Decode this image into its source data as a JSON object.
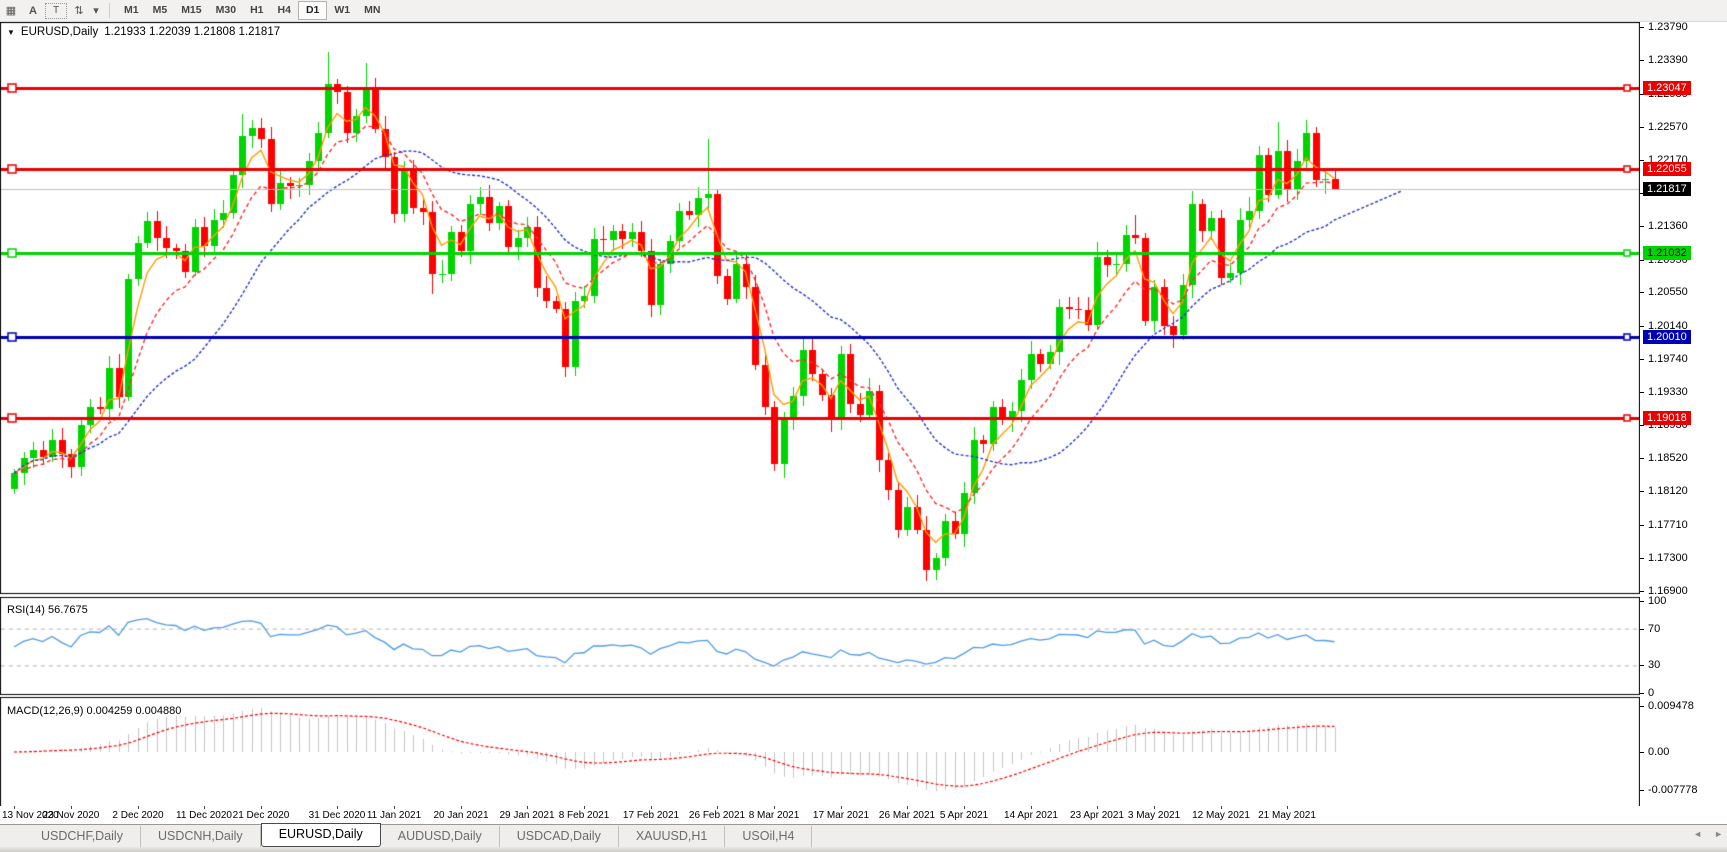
{
  "icons": {
    "dropdown": "▼",
    "tool_grid": "▦",
    "tool_text_a": "A",
    "tool_text_box": "T",
    "tool_arrows": "⇅",
    "tool_caret": "▾",
    "tab_left": "◄",
    "tab_right": "►"
  },
  "toolbar": {
    "timeframes": [
      "M1",
      "M5",
      "M15",
      "M30",
      "H1",
      "H4",
      "D1",
      "W1",
      "MN"
    ],
    "active_timeframe": "D1"
  },
  "chart_header": {
    "symbol": "EURUSD,Daily",
    "ohlc": "1.21933 1.22039 1.21808 1.21817"
  },
  "price_axis": {
    "ticks": [
      "1.23790",
      "1.23390",
      "1.22980",
      "1.22570",
      "1.22170",
      "1.21760",
      "1.21360",
      "1.20950",
      "1.20550",
      "1.20140",
      "1.19740",
      "1.19330",
      "1.18930",
      "1.18520",
      "1.18120",
      "1.17710",
      "1.17300",
      "1.16900"
    ]
  },
  "date_axis": {
    "labels": [
      "13 Nov 2020",
      "23 Nov 2020",
      "2 Dec 2020",
      "11 Dec 2020",
      "21 Dec 2020",
      "31 Dec 2020",
      "11 Jan 2021",
      "20 Jan 2021",
      "29 Jan 2021",
      "8 Feb 2021",
      "17 Feb 2021",
      "26 Feb 2021",
      "8 Mar 2021",
      "17 Mar 2021",
      "26 Mar 2021",
      "5 Apr 2021",
      "14 Apr 2021",
      "23 Apr 2021",
      "3 May 2021",
      "12 May 2021",
      "21 May 2021"
    ],
    "bar_indices": [
      0,
      6,
      13,
      20,
      26,
      34,
      40,
      47,
      54,
      60,
      67,
      74,
      80,
      87,
      94,
      100,
      107,
      114,
      120,
      127,
      134
    ]
  },
  "hlines": [
    {
      "value": "1.23047",
      "price": 1.23047,
      "color": "#ea0000",
      "text_color": "#ffffff"
    },
    {
      "value": "1.22055",
      "price": 1.22055,
      "color": "#ea0000",
      "text_color": "#ffffff"
    },
    {
      "value": "1.21032",
      "price": 1.21032,
      "color": "#00d400",
      "text_color": "#000000"
    },
    {
      "value": "1.20010",
      "price": 1.2001,
      "color": "#0000b4",
      "text_color": "#ffffff"
    },
    {
      "value": "1.19018",
      "price": 1.19018,
      "color": "#ea0000",
      "text_color": "#ffffff"
    }
  ],
  "current_price": {
    "value": "1.21817",
    "price": 1.21817,
    "line_color": "#c0c0c0",
    "tag_bg": "#000000",
    "tag_fg": "#ffffff"
  },
  "indicators": {
    "rsi": {
      "label": "RSI(14)",
      "value": "56.7675",
      "color": "#4f9be8",
      "axis": [
        {
          "text": "100",
          "v": 100
        },
        {
          "text": "70",
          "v": 70
        },
        {
          "text": "30",
          "v": 30
        },
        {
          "text": "0",
          "v": 0
        }
      ],
      "levels": [
        70,
        30
      ]
    },
    "macd": {
      "label": "MACD(12,26,9)",
      "value1": "0.004259",
      "value2": "0.004880",
      "hist_color": "#c4c4c4",
      "signal_color": "#ff0000",
      "axis": [
        {
          "text": "0.009478",
          "v": 0.009478
        },
        {
          "text": "0.00",
          "v": 0
        },
        {
          "text": "-0.007778",
          "v": -0.007778
        }
      ]
    }
  },
  "tabs": {
    "items": [
      "USDCHF,Daily",
      "USDCNH,Daily",
      "EURUSD,Daily",
      "AUDUSD,Daily",
      "USDCAD,Daily",
      "XAUUSD,H1",
      "USOil,H4"
    ],
    "active_index": 2
  },
  "chart_data": {
    "type": "candlestick",
    "symbol": "EURUSD",
    "timeframe": "Daily",
    "start_date": "13 Nov 2020",
    "end_date": "28 May 2021",
    "ylim": [
      1.16873,
      1.23855
    ],
    "up_color": "#00d400",
    "down_color": "#ff0000",
    "first_open": 1.1815,
    "closes": [
      1.1834,
      1.1852,
      1.1862,
      1.1854,
      1.1874,
      1.1857,
      1.1842,
      1.1893,
      1.1915,
      1.1913,
      1.1963,
      1.1927,
      1.2071,
      1.2115,
      1.2142,
      1.2121,
      1.2109,
      1.2106,
      1.208,
      1.2135,
      1.2112,
      1.2143,
      1.2152,
      1.2199,
      1.2246,
      1.2256,
      1.2243,
      1.2163,
      1.2189,
      1.2185,
      1.2186,
      1.2215,
      1.225,
      1.231,
      1.23,
      1.225,
      1.227,
      1.2303,
      1.2255,
      1.222,
      1.2151,
      1.2207,
      1.2158,
      1.2153,
      1.2077,
      1.2078,
      1.2129,
      1.2105,
      1.2163,
      1.2171,
      1.214,
      1.216,
      1.211,
      1.2122,
      1.2135,
      1.206,
      1.2044,
      1.2035,
      1.1964,
      1.2045,
      1.205,
      1.212,
      1.2119,
      1.213,
      1.212,
      1.2129,
      1.2105,
      1.204,
      1.209,
      1.2118,
      1.2155,
      1.215,
      1.217,
      1.2175,
      1.2075,
      1.2047,
      1.209,
      1.2062,
      1.1966,
      1.1915,
      1.1845,
      1.19,
      1.1928,
      1.1985,
      1.1955,
      1.193,
      1.19,
      1.198,
      1.1918,
      1.1905,
      1.1935,
      1.185,
      1.1813,
      1.1765,
      1.1793,
      1.1765,
      1.1716,
      1.173,
      1.1775,
      1.176,
      1.181,
      1.1875,
      1.187,
      1.1915,
      1.19,
      1.191,
      1.1948,
      1.198,
      1.1967,
      1.1982,
      1.2037,
      1.2035,
      1.2033,
      1.2015,
      1.2098,
      1.2088,
      1.209,
      1.2125,
      1.2122,
      1.202,
      1.2062,
      1.2014,
      1.2003,
      1.2064,
      1.2163,
      1.213,
      1.2146,
      1.2073,
      1.2079,
      1.2144,
      1.2155,
      1.2223,
      1.2174,
      1.2228,
      1.218,
      1.2215,
      1.225,
      1.2192,
      1.2194,
      1.21817
    ],
    "high_overrides": {
      "24": 1.2273,
      "33": 1.2349,
      "37": 1.2335,
      "73": 1.2243,
      "114": 1.2117,
      "118": 1.215,
      "124": 1.2179,
      "131": 1.2234,
      "133": 1.2263,
      "136": 1.2266
    },
    "low_overrides": {
      "12": 1.1923,
      "44": 1.2053,
      "58": 1.1952,
      "78": 1.196,
      "80": 1.1836,
      "97": 1.1704,
      "119": 1.2014,
      "122": 1.1986,
      "127": 1.2065
    },
    "last_bar": {
      "open": 1.21933,
      "high": 1.22039,
      "low": 1.21808,
      "close": 1.21817
    },
    "overlays": [
      {
        "name": "ma-fast",
        "method": "ema",
        "period": 4,
        "color": "#ff9c00",
        "dash": []
      },
      {
        "name": "ma-medium",
        "method": "ema",
        "period": 9,
        "color": "#ff2a2a",
        "dash": [
          4,
          3
        ]
      },
      {
        "name": "ma-slow",
        "method": "sma",
        "period": 20,
        "color": "#2633cc",
        "dash": [
          3,
          2
        ],
        "extend_bars": 7
      }
    ]
  }
}
